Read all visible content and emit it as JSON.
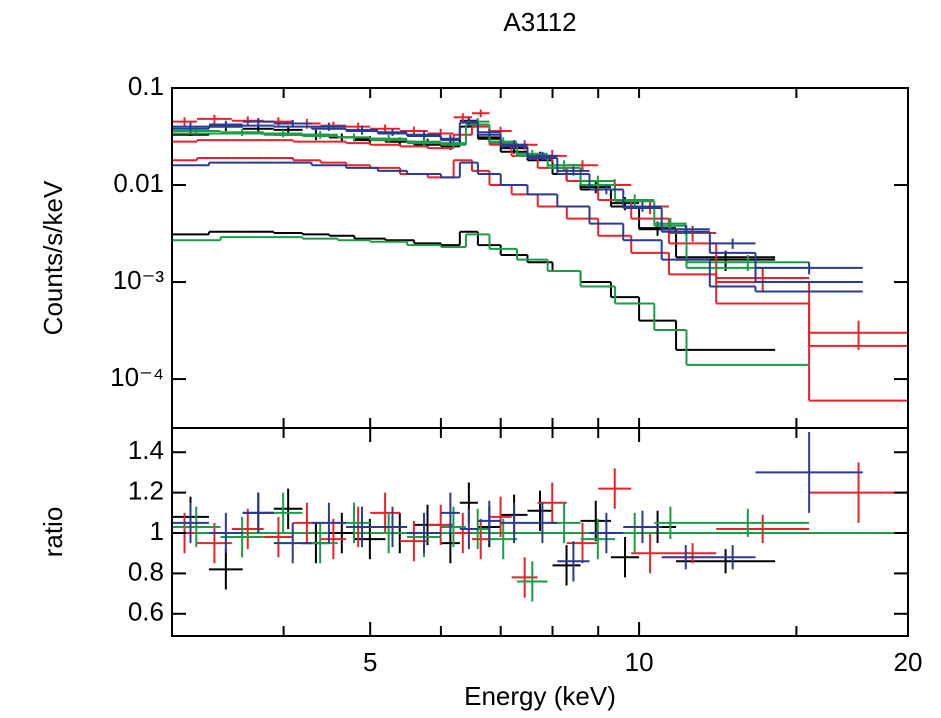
{
  "chart_data": [
    {
      "type": "step",
      "title": "A3112",
      "ylabel": "Counts/s/keV",
      "xlog": true,
      "ylog": true,
      "xlim": [
        3,
        20
      ],
      "ylim": [
        3.13e-05,
        0.1
      ],
      "xtick_marks": [
        4,
        5,
        6,
        7,
        8,
        9,
        10,
        15
      ],
      "yticks": [
        0.1,
        0.01,
        {
          "value": 0.001,
          "label": "10⁻³"
        },
        {
          "value": 0.0001,
          "label": "10⁻⁴"
        }
      ],
      "series": [
        {
          "color": "#000000",
          "bins": [
            3,
            3.3,
            3.6,
            3.9,
            4.2,
            4.5,
            4.8,
            5.2,
            5.6,
            6.0,
            6.3,
            6.6,
            7.0,
            7.5,
            8.0,
            8.6,
            9.3,
            10.0,
            11.0,
            14.2
          ],
          "values": [
            0.036,
            0.04,
            0.038,
            0.037,
            0.033,
            0.031,
            0.029,
            0.028,
            0.027,
            0.026,
            0.046,
            0.031,
            0.024,
            0.02,
            0.013,
            0.0095,
            0.0065,
            0.0036,
            0.0017
          ],
          "errors": [
            0.004,
            0.004,
            0.004,
            0.004,
            0.004,
            0.003,
            0.003,
            0.003,
            0.003,
            0.003,
            0.004,
            0.003,
            0.003,
            0.002,
            0.002,
            0.0013,
            0.001,
            0.0006,
            0.0004
          ],
          "model": [
            0.033,
            0.034,
            0.034,
            0.033,
            0.032,
            0.031,
            0.03,
            0.028,
            0.026,
            0.025,
            0.04,
            0.03,
            0.022,
            0.018,
            0.013,
            0.009,
            0.006,
            0.0035,
            0.0018
          ],
          "background": [
            0.0031,
            0.0033,
            0.0033,
            0.0032,
            0.0031,
            0.003,
            0.0028,
            0.0027,
            0.0025,
            0.0024,
            0.0033,
            0.0024,
            0.0019,
            0.0016,
            0.0013,
            0.001,
            0.0007,
            0.0004,
            0.0002
          ]
        },
        {
          "color": "#e8222a",
          "bins": [
            3,
            3.2,
            3.5,
            3.8,
            4.1,
            4.4,
            4.7,
            5.0,
            5.4,
            5.8,
            6.2,
            6.5,
            6.8,
            7.2,
            7.7,
            8.3,
            9.0,
            9.8,
            10.8,
            12.2,
            15.5,
            20
          ],
          "values": [
            0.045,
            0.048,
            0.046,
            0.045,
            0.043,
            0.041,
            0.04,
            0.038,
            0.036,
            0.034,
            0.05,
            0.055,
            0.036,
            0.026,
            0.02,
            0.016,
            0.01,
            0.006,
            0.0032,
            0.0011,
            0.0003
          ],
          "errors": [
            0.005,
            0.005,
            0.005,
            0.005,
            0.005,
            0.004,
            0.004,
            0.004,
            0.004,
            0.004,
            0.005,
            0.005,
            0.004,
            0.003,
            0.003,
            0.002,
            0.0015,
            0.001,
            0.0006,
            0.0003,
            0.0001
          ],
          "model": [
            0.028,
            0.029,
            0.029,
            0.029,
            0.028,
            0.028,
            0.027,
            0.026,
            0.025,
            0.024,
            0.033,
            0.04,
            0.026,
            0.02,
            0.015,
            0.011,
            0.007,
            0.0045,
            0.0025,
            0.001,
            0.00022
          ],
          "background": [
            0.018,
            0.019,
            0.019,
            0.019,
            0.018,
            0.017,
            0.016,
            0.015,
            0.013,
            0.012,
            0.018,
            0.014,
            0.01,
            0.008,
            0.006,
            0.0045,
            0.003,
            0.002,
            0.0012,
            0.0006,
            6e-05
          ]
        },
        {
          "color": "#1a9e45",
          "bins": [
            3,
            3.4,
            3.8,
            4.2,
            4.6,
            5.0,
            5.5,
            6.0,
            6.4,
            6.8,
            7.3,
            7.9,
            8.6,
            9.4,
            10.4,
            11.3,
            15.5
          ],
          "values": [
            0.036,
            0.035,
            0.034,
            0.033,
            0.031,
            0.03,
            0.028,
            0.027,
            0.045,
            0.028,
            0.021,
            0.016,
            0.011,
            0.007,
            0.004,
            0.0016
          ],
          "errors": [
            0.003,
            0.003,
            0.003,
            0.003,
            0.003,
            0.003,
            0.003,
            0.003,
            0.004,
            0.003,
            0.002,
            0.002,
            0.0015,
            0.001,
            0.0006,
            0.0003
          ],
          "model": [
            0.034,
            0.034,
            0.033,
            0.032,
            0.031,
            0.029,
            0.027,
            0.026,
            0.042,
            0.027,
            0.02,
            0.015,
            0.01,
            0.0068,
            0.0038,
            0.0014
          ],
          "background": [
            0.0027,
            0.0029,
            0.0029,
            0.0028,
            0.0027,
            0.0026,
            0.0024,
            0.0023,
            0.0031,
            0.0022,
            0.0017,
            0.0013,
            0.0009,
            0.0006,
            0.00032,
            0.00014
          ]
        },
        {
          "color": "#2b3a92",
          "bins": [
            3,
            3.3,
            3.6,
            3.9,
            4.3,
            4.7,
            5.1,
            5.5,
            6.0,
            6.3,
            6.6,
            7.0,
            7.5,
            8.1,
            8.8,
            9.6,
            10.6,
            12.0,
            13.5,
            17.8
          ],
          "values": [
            0.04,
            0.042,
            0.045,
            0.043,
            0.04,
            0.037,
            0.035,
            0.033,
            0.03,
            0.045,
            0.035,
            0.026,
            0.02,
            0.014,
            0.009,
            0.006,
            0.0035,
            0.0025,
            0.0014
          ],
          "errors": [
            0.004,
            0.004,
            0.004,
            0.004,
            0.004,
            0.004,
            0.003,
            0.003,
            0.003,
            0.004,
            0.003,
            0.003,
            0.002,
            0.0015,
            0.001,
            0.0007,
            0.0004,
            0.0003,
            0.0002
          ],
          "model": [
            0.038,
            0.04,
            0.041,
            0.04,
            0.038,
            0.036,
            0.034,
            0.032,
            0.029,
            0.044,
            0.033,
            0.025,
            0.019,
            0.013,
            0.009,
            0.0058,
            0.0033,
            0.002,
            0.001
          ],
          "background": [
            0.016,
            0.017,
            0.017,
            0.017,
            0.016,
            0.015,
            0.014,
            0.013,
            0.012,
            0.017,
            0.013,
            0.01,
            0.008,
            0.006,
            0.004,
            0.0027,
            0.0017,
            0.0009,
            0.0008
          ]
        }
      ]
    },
    {
      "type": "step",
      "ylabel": "ratio",
      "xlabel": "Energy (keV)",
      "xlog": true,
      "ylog": false,
      "xlim": [
        3,
        20
      ],
      "ylim": [
        0.49,
        1.52
      ],
      "xticks": [
        5,
        10,
        20
      ],
      "xtick_marks": [
        4,
        6,
        7,
        8,
        9,
        15
      ],
      "yticks": [
        0.6,
        0.8,
        1,
        1.2,
        1.4
      ],
      "reference": 1,
      "reference_color": "#1a9e45",
      "series": [
        {
          "color": "#000000",
          "bins": [
            3,
            3.3,
            3.6,
            3.9,
            4.2,
            4.5,
            4.8,
            5.2,
            5.6,
            6.0,
            6.3,
            6.6,
            7.0,
            7.5,
            8.0,
            8.6,
            9.3,
            10.0,
            11.0,
            14.2
          ],
          "values": [
            1.08,
            0.82,
            1.1,
            1.12,
            0.95,
            1.0,
            0.97,
            1.0,
            1.04,
            0.95,
            1.15,
            1.03,
            1.09,
            1.11,
            0.84,
            1.06,
            0.88,
            1.03,
            0.86
          ],
          "errors": [
            0.1,
            0.1,
            0.1,
            0.1,
            0.1,
            0.1,
            0.1,
            0.1,
            0.1,
            0.1,
            0.1,
            0.1,
            0.1,
            0.1,
            0.1,
            0.1,
            0.1,
            0.08,
            0.06
          ]
        },
        {
          "color": "#e8222a",
          "bins": [
            3,
            3.2,
            3.5,
            3.8,
            4.1,
            4.4,
            4.7,
            5.0,
            5.4,
            5.8,
            6.2,
            6.5,
            6.8,
            7.2,
            7.7,
            8.3,
            9.0,
            9.8,
            10.8,
            12.2,
            15.5,
            20
          ],
          "values": [
            1.0,
            0.95,
            1.02,
            0.98,
            1.05,
            0.97,
            1.03,
            1.1,
            0.96,
            1.04,
            1.0,
            0.97,
            1.08,
            0.78,
            1.15,
            0.95,
            1.22,
            0.9,
            0.9,
            1.02,
            1.2
          ],
          "errors": [
            0.1,
            0.1,
            0.1,
            0.1,
            0.1,
            0.1,
            0.1,
            0.1,
            0.1,
            0.1,
            0.1,
            0.1,
            0.1,
            0.1,
            0.1,
            0.1,
            0.1,
            0.1,
            0.05,
            0.07,
            0.15
          ]
        },
        {
          "color": "#1a9e45",
          "bins": [
            3,
            3.4,
            3.8,
            4.2,
            4.6,
            5.0,
            5.5,
            6.0,
            6.4,
            6.8,
            7.3,
            7.9,
            8.6,
            9.4,
            10.4,
            11.3,
            15.5
          ],
          "values": [
            1.03,
            0.98,
            1.1,
            0.95,
            1.05,
            1.0,
            0.98,
            1.03,
            1.02,
            0.97,
            0.76,
            1.05,
            0.97,
            1.0,
            1.05,
            1.05
          ],
          "errors": [
            0.1,
            0.1,
            0.1,
            0.1,
            0.1,
            0.1,
            0.1,
            0.1,
            0.1,
            0.1,
            0.1,
            0.1,
            0.1,
            0.1,
            0.08,
            0.07
          ]
        },
        {
          "color": "#2b3a92",
          "bins": [
            3,
            3.3,
            3.6,
            3.9,
            4.3,
            4.7,
            5.1,
            5.5,
            6.0,
            6.3,
            6.6,
            7.0,
            7.5,
            8.1,
            8.8,
            9.6,
            10.6,
            12.0,
            13.5,
            17.8
          ],
          "values": [
            1.05,
            1.0,
            1.1,
            0.95,
            1.05,
            1.03,
            1.03,
            1.0,
            1.1,
            1.02,
            1.06,
            1.05,
            1.05,
            0.86,
            1.0,
            1.03,
            0.88,
            0.88,
            1.3
          ],
          "errors": [
            0.1,
            0.1,
            0.1,
            0.1,
            0.1,
            0.1,
            0.1,
            0.1,
            0.1,
            0.1,
            0.1,
            0.1,
            0.1,
            0.1,
            0.1,
            0.08,
            0.06,
            0.06,
            0.2
          ]
        }
      ]
    }
  ]
}
